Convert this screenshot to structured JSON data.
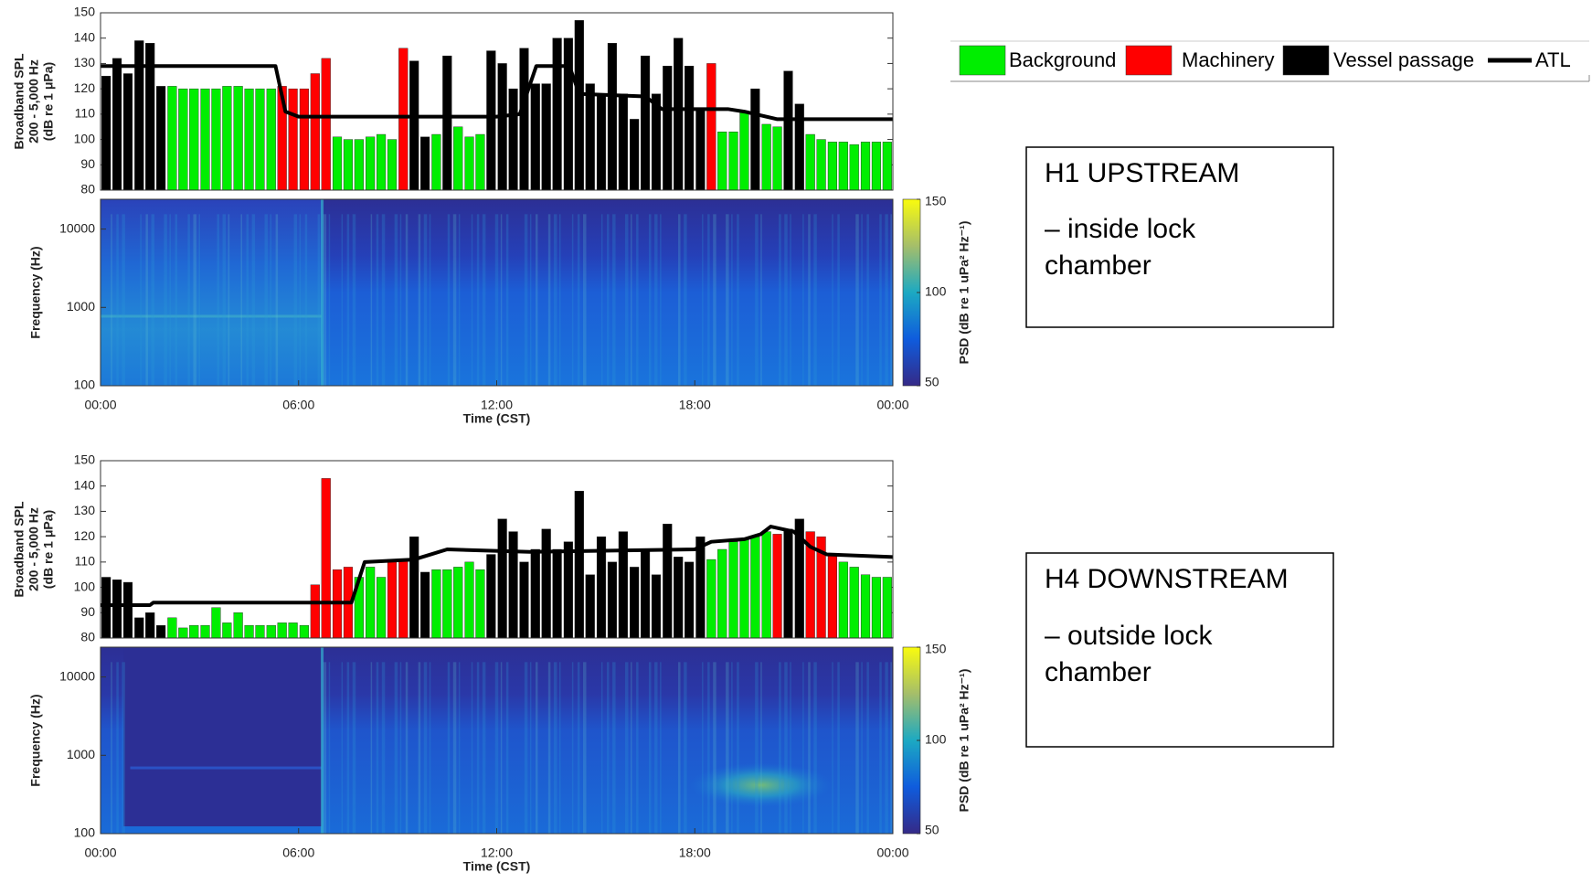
{
  "legend": [
    {
      "name": "Background",
      "color": "#00ee00"
    },
    {
      "name": "Machinery",
      "color": "#ff0000"
    },
    {
      "name": "Vessel passage",
      "color": "#000000"
    },
    {
      "name": "ATL",
      "color": "#000000",
      "style": "line"
    }
  ],
  "captions": [
    {
      "title": "H1 UPSTREAM",
      "lines": [
        "– inside lock",
        "chamber"
      ]
    },
    {
      "title": "H4 DOWNSTREAM",
      "lines": [
        "– outside lock",
        "chamber"
      ]
    }
  ],
  "chart_data": [
    {
      "type": "bar",
      "ylabel": [
        "Broadband SPL",
        "200 - 5,000 Hz",
        "(dB re 1 μPa)"
      ],
      "xlim": [
        0,
        24
      ],
      "ylim": [
        80,
        150
      ],
      "yticks": [
        80,
        90,
        100,
        110,
        120,
        130,
        140,
        150
      ],
      "x": [
        0.17,
        0.5,
        0.83,
        1.17,
        1.5,
        1.83,
        2.17,
        2.5,
        2.83,
        3.17,
        3.5,
        3.83,
        4.17,
        4.5,
        4.83,
        5.17,
        5.5,
        5.83,
        6.17,
        6.5,
        6.83,
        7.17,
        7.5,
        7.83,
        8.17,
        8.5,
        8.83,
        9.17,
        9.5,
        9.83,
        10.17,
        10.5,
        10.83,
        11.17,
        11.5,
        11.83,
        12.17,
        12.5,
        12.83,
        13.17,
        13.5,
        13.83,
        14.17,
        14.5,
        14.83,
        15.17,
        15.5,
        15.83,
        16.17,
        16.5,
        16.83,
        17.17,
        17.5,
        17.83,
        18.17,
        18.5,
        18.83,
        19.17,
        19.5,
        19.83,
        20.17,
        20.5,
        20.83,
        21.17,
        21.5,
        21.83,
        22.17,
        22.5,
        22.83,
        23.17,
        23.5,
        23.83
      ],
      "values": [
        125,
        132,
        126,
        139,
        138,
        121,
        121,
        120,
        120,
        120,
        120,
        121,
        121,
        120,
        120,
        120,
        121,
        120,
        120,
        126,
        132,
        101,
        100,
        100,
        101,
        102,
        100,
        136,
        131,
        101,
        102,
        133,
        105,
        101,
        102,
        135,
        130,
        120,
        136,
        122,
        122,
        140,
        140,
        147,
        122,
        118,
        138,
        118,
        108,
        133,
        118,
        129,
        140,
        129,
        112,
        130,
        103,
        103,
        111,
        120,
        106,
        105,
        127,
        114,
        102,
        100,
        99,
        99,
        98,
        99,
        99,
        99
      ],
      "groups": [
        2,
        2,
        2,
        2,
        2,
        2,
        0,
        0,
        0,
        0,
        0,
        0,
        0,
        0,
        0,
        0,
        1,
        1,
        1,
        1,
        1,
        0,
        0,
        0,
        0,
        0,
        0,
        1,
        2,
        2,
        0,
        2,
        0,
        0,
        0,
        2,
        2,
        2,
        2,
        2,
        2,
        2,
        2,
        2,
        2,
        2,
        2,
        2,
        2,
        2,
        2,
        2,
        2,
        2,
        2,
        1,
        0,
        0,
        0,
        2,
        0,
        0,
        2,
        2,
        0,
        0,
        0,
        0,
        0,
        0,
        0,
        0
      ],
      "line": {
        "x": [
          0,
          5.3,
          5.6,
          6,
          12,
          12.7,
          13.2,
          14.2,
          14.5,
          16.5,
          17,
          19,
          19.5,
          20.5,
          24
        ],
        "values": [
          129,
          129,
          111,
          109,
          109,
          110,
          129,
          129,
          118,
          117,
          112,
          112,
          111,
          108,
          108
        ]
      }
    },
    {
      "type": "heatmap",
      "ylabel": "Frequency (Hz)",
      "xlabel": "Time (CST)",
      "xlim": [
        0,
        24
      ],
      "xticks": [
        {
          "value": 0,
          "label": "00:00"
        },
        {
          "value": 6,
          "label": "06:00"
        },
        {
          "value": 12,
          "label": "12:00"
        },
        {
          "value": 18,
          "label": "18:00"
        },
        {
          "value": 24,
          "label": "00:00"
        }
      ],
      "ylim": [
        100,
        24000
      ],
      "yticks": [
        100,
        1000,
        10000
      ],
      "log_y": true,
      "colorbar": {
        "label": "PSD (dB re 1 uPa² Hz⁻¹)",
        "lim": [
          50,
          150
        ],
        "ticks": [
          50,
          100,
          150
        ],
        "colors": [
          "#352a87",
          "#0f5cdd",
          "#1ca9c2",
          "#a5be6a",
          "#f9fb0e"
        ]
      }
    },
    {
      "type": "bar",
      "ylabel": [
        "Broadband SPL",
        "200 - 5,000 Hz",
        "(dB re 1 μPa)"
      ],
      "xlim": [
        0,
        24
      ],
      "ylim": [
        80,
        150
      ],
      "yticks": [
        80,
        90,
        100,
        110,
        120,
        130,
        140,
        150
      ],
      "x": [
        0.17,
        0.5,
        0.83,
        1.17,
        1.5,
        1.83,
        2.17,
        2.5,
        2.83,
        3.17,
        3.5,
        3.83,
        4.17,
        4.5,
        4.83,
        5.17,
        5.5,
        5.83,
        6.17,
        6.5,
        6.83,
        7.17,
        7.5,
        7.83,
        8.17,
        8.5,
        8.83,
        9.17,
        9.5,
        9.83,
        10.17,
        10.5,
        10.83,
        11.17,
        11.5,
        11.83,
        12.17,
        12.5,
        12.83,
        13.17,
        13.5,
        13.83,
        14.17,
        14.5,
        14.83,
        15.17,
        15.5,
        15.83,
        16.17,
        16.5,
        16.83,
        17.17,
        17.5,
        17.83,
        18.17,
        18.5,
        18.83,
        19.17,
        19.5,
        19.83,
        20.17,
        20.5,
        20.83,
        21.17,
        21.5,
        21.83,
        22.17,
        22.5,
        22.83,
        23.17,
        23.5,
        23.83
      ],
      "values": [
        104,
        103,
        102,
        88,
        90,
        85,
        88,
        84,
        85,
        85,
        92,
        86,
        90,
        85,
        85,
        85,
        86,
        86,
        85,
        101,
        143,
        107,
        108,
        104,
        108,
        104,
        111,
        111,
        120,
        106,
        107,
        107,
        108,
        110,
        107,
        113,
        127,
        122,
        110,
        115,
        123,
        115,
        118,
        138,
        105,
        120,
        110,
        122,
        108,
        115,
        105,
        125,
        112,
        110,
        120,
        111,
        115,
        118,
        119,
        120,
        122,
        121,
        123,
        127,
        122,
        120,
        113,
        110,
        108,
        105,
        104,
        104
      ],
      "groups": [
        2,
        2,
        2,
        2,
        2,
        2,
        0,
        0,
        0,
        0,
        0,
        0,
        0,
        0,
        0,
        0,
        0,
        0,
        0,
        1,
        1,
        1,
        1,
        0,
        0,
        0,
        1,
        1,
        2,
        2,
        0,
        0,
        0,
        0,
        0,
        2,
        2,
        2,
        2,
        2,
        2,
        2,
        2,
        2,
        2,
        2,
        2,
        2,
        2,
        2,
        2,
        2,
        2,
        2,
        2,
        0,
        0,
        0,
        0,
        0,
        0,
        1,
        2,
        2,
        1,
        1,
        1,
        0,
        0,
        0,
        0,
        0
      ],
      "line": {
        "x": [
          0,
          1.5,
          1.6,
          7.6,
          8,
          9.5,
          10,
          10.5,
          13,
          18,
          18.5,
          19.5,
          20,
          20.3,
          21,
          21.5,
          22,
          24
        ],
        "values": [
          93,
          93,
          94,
          94,
          110,
          111,
          113,
          115,
          114,
          115,
          118,
          119,
          121,
          124,
          122,
          116,
          113,
          112
        ]
      }
    },
    {
      "type": "heatmap",
      "ylabel": "Frequency (Hz)",
      "xlabel": "Time (CST)",
      "xlim": [
        0,
        24
      ],
      "xticks": [
        {
          "value": 0,
          "label": "00:00"
        },
        {
          "value": 6,
          "label": "06:00"
        },
        {
          "value": 12,
          "label": "12:00"
        },
        {
          "value": 18,
          "label": "18:00"
        },
        {
          "value": 24,
          "label": "00:00"
        }
      ],
      "ylim": [
        100,
        24000
      ],
      "yticks": [
        100,
        1000,
        10000
      ],
      "log_y": true,
      "colorbar": {
        "label": "PSD (dB re 1 uPa² Hz⁻¹)",
        "lim": [
          50,
          150
        ],
        "ticks": [
          50,
          100,
          150
        ],
        "colors": [
          "#352a87",
          "#0f5cdd",
          "#1ca9c2",
          "#a5be6a",
          "#f9fb0e"
        ]
      }
    }
  ]
}
